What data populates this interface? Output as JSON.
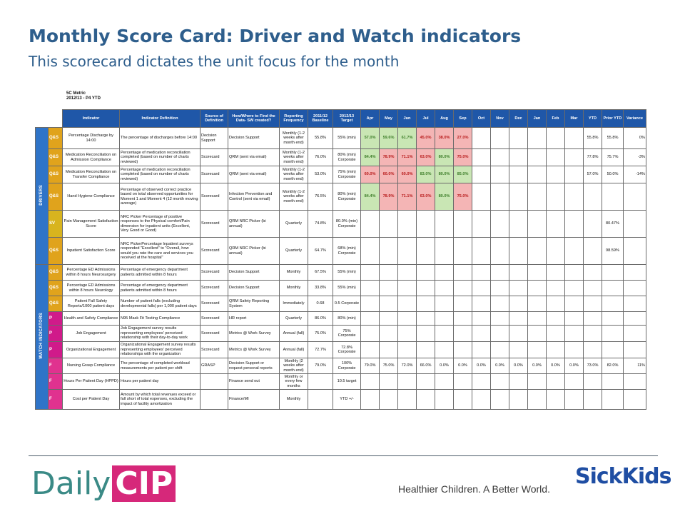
{
  "header": {
    "title": "Monthly Score Card: Driver and Watch indicators",
    "subtitle": "This scorecard dictates the unit focus for the month"
  },
  "scorecard": {
    "metric_label": "5C Metric",
    "period_label": "2012/13 - P4 YTD",
    "columns": {
      "indicator": "Indicator",
      "definition": "Indicator Definition",
      "source": "Source of Definition",
      "how_where": "How/Where to Find the Data- SW created?",
      "frequency": "Reporting Frequency",
      "baseline": "2011/12 Baseline",
      "target": "2012/13 Target",
      "months": [
        "Apr",
        "May",
        "Jun",
        "Jul",
        "Aug",
        "Sep",
        "Oct",
        "Nov",
        "Dec",
        "Jan",
        "Feb",
        "Mar"
      ],
      "ytd": "YTD",
      "prior_ytd": "Prior YTD",
      "variance": "Variance"
    },
    "groups": {
      "drivers": "DRIVERS",
      "watch": "WATCH INDICATORS"
    },
    "drivers": [
      {
        "cat": "Q&S",
        "indicator": "Percentage Discharge by 14:00",
        "definition": "The percentage of discharges before 14:00",
        "source": "Decision Support",
        "how": "Decision Support",
        "frequency": "Monthly (1-2 weeks after month end)",
        "baseline": "55.8%",
        "target": "55% (min)",
        "months": [
          "57.0%",
          "59.6%",
          "61.7%",
          "45.0%",
          "38.0%",
          "27.0%",
          "",
          "",
          "",
          "",
          "",
          ""
        ],
        "ytd": "55.8%",
        "prior_ytd": "55.8%",
        "variance": "0%"
      },
      {
        "cat": "Q&S",
        "indicator": "Medication Reconciliation on Admission Compliance",
        "definition": "Percentage of medication reconciliation completed (based on number of charts reviewed)",
        "source": "Scorecard",
        "how": "QRM (sent via email)",
        "frequency": "Monthly (1-2 weeks after month end)",
        "baseline": "76.0%",
        "target": "80% (min) Corporate",
        "months": [
          "84.4%",
          "78.9%",
          "71.1%",
          "63.0%",
          "80.0%",
          "75.0%",
          "",
          "",
          "",
          "",
          "",
          ""
        ],
        "ytd": "77.8%",
        "prior_ytd": "75.7%",
        "variance": "-3%"
      },
      {
        "cat": "Q&S",
        "indicator": "Medication Reconciliation on Transfer Compliance",
        "definition": "Percentage of medication reconciliation completed (based on number of charts reviewed)",
        "source": "Scorecard",
        "how": "QRM (sent via email)",
        "frequency": "Monthly (1-2 weeks after month end)",
        "baseline": "53.0%",
        "target": "75% (min) Corporate",
        "months": [
          "60.0%",
          "60.0%",
          "60.0%",
          "83.0%",
          "80.0%",
          "85.0%",
          "",
          "",
          "",
          "",
          "",
          ""
        ],
        "ytd": "57.0%",
        "prior_ytd": "50.0%",
        "variance": "-14%"
      },
      {
        "cat": "Q&S",
        "indicator": "Hand Hygiene Compliance",
        "definition": "Percentage of observed correct practice based on total observed opportunities for Moment 1 and Moment 4 (12 month moving average)",
        "source": "Scorecard",
        "how": "Infection Prevention and Control (sent via email)",
        "frequency": "Monthly (1-2 weeks after month end)",
        "baseline": "76.5%",
        "target": "80% (min) Corporate",
        "months": [
          "84.4%",
          "78.9%",
          "71.1%",
          "63.0%",
          "80.0%",
          "75.0%",
          "",
          "",
          "",
          "",
          "",
          ""
        ],
        "ytd": "",
        "prior_ytd": "",
        "variance": ""
      },
      {
        "cat": "SV",
        "indicator": "Pain Management Satisfaction Score",
        "definition": "NRC Picker Percentage of positive responses to the Physical comfort/Pain dimension for inpatient units (Excellent, Very Good or Good)",
        "source": "Scorecard",
        "how": "QRM NRC Picker (bi annual)",
        "frequency": "Quarterly",
        "baseline": "74.8%",
        "target": "80.0% (min) Corporate",
        "months": [
          "",
          "",
          "",
          "",
          "",
          "",
          "",
          "",
          "",
          "",
          "",
          ""
        ],
        "ytd": "",
        "prior_ytd": "80.47%",
        "variance": ""
      },
      {
        "cat": "Q&S",
        "indicator": "Inpatient Satisfaction Score",
        "definition": "NRC PickerPercentage Inpatient surveys responded \"Excellent\" to \"Overall, how would you rate the care and services you received at the hospital\"",
        "source": "Scorecard",
        "how": "QRM NRC Picker (bi annual)",
        "frequency": "Quarterly",
        "baseline": "64.7%",
        "target": "68% (min) Corporate",
        "months": [
          "",
          "",
          "",
          "",
          "",
          "",
          "",
          "",
          "",
          "",
          "",
          ""
        ],
        "ytd": "",
        "prior_ytd": "98.59%",
        "variance": ""
      }
    ],
    "watch": [
      {
        "cat": "Q&S",
        "indicator": "Percentage ED Admissions within 8 hours Neurosurgery",
        "definition": "Percentage of emergency department patients admitted within 8 hours",
        "source": "Scorecard",
        "how": "Decision Support",
        "frequency": "Monthly",
        "baseline": "67.5%",
        "target": "55% (min)",
        "months": [
          "",
          "",
          "",
          "",
          "",
          "",
          "",
          "",
          "",
          "",
          "",
          ""
        ],
        "ytd": "",
        "prior_ytd": "",
        "variance": ""
      },
      {
        "cat": "Q&S",
        "indicator": "Percentage ED Admissions within 8 hours Neurology",
        "definition": "Percentage of emergency department patients admitted within 8 hours",
        "source": "Scorecard",
        "how": "Decision Support",
        "frequency": "Monthly",
        "baseline": "33.8%",
        "target": "55% (min)",
        "months": [
          "",
          "",
          "",
          "",
          "",
          "",
          "",
          "",
          "",
          "",
          "",
          ""
        ],
        "ytd": "",
        "prior_ytd": "",
        "variance": ""
      },
      {
        "cat": "Q&S",
        "indicator": "Patient Fall Safety Reports/1000 patient days",
        "definition": "Number of patient falls (excluding developmental falls) per 1,000 patient days",
        "source": "Scorecard",
        "how": "QRM Safety Reporting System",
        "frequency": "Immediately",
        "baseline": "0.68",
        "target": "0.5 Corporate",
        "months": [
          "",
          "",
          "",
          "",
          "",
          "",
          "",
          "",
          "",
          "",
          "",
          ""
        ],
        "ytd": "",
        "prior_ytd": "",
        "variance": ""
      },
      {
        "cat": "P",
        "indicator": "Health and Safety Compliance",
        "definition": "N95 Mask Fit Testing Compliance",
        "source": "Scorecard",
        "how": "HR report",
        "frequency": "Quarterly",
        "baseline": "86.0%",
        "target": "80% (min)",
        "months": [
          "",
          "",
          "",
          "",
          "",
          "",
          "",
          "",
          "",
          "",
          "",
          ""
        ],
        "ytd": "",
        "prior_ytd": "",
        "variance": ""
      },
      {
        "cat": "P",
        "indicator": "Job Engagement",
        "definition": "Job Engagement survey results representing employees' perceived relationship with their day-to-day work",
        "source": "Scorecard",
        "how": "Metrics @ Work Survey",
        "frequency": "Annual (fall)",
        "baseline": "75.0%",
        "target": "75% Corporate",
        "months": [
          "",
          "",
          "",
          "",
          "",
          "",
          "",
          "",
          "",
          "",
          "",
          ""
        ],
        "ytd": "",
        "prior_ytd": "",
        "variance": ""
      },
      {
        "cat": "P",
        "indicator": "Organizational Engagement",
        "definition": "Organizational Engagement survey results representing employees' perceived relationships with the organization",
        "source": "Scorecard",
        "how": "Metrics @ Work Survey",
        "frequency": "Annual (fall)",
        "baseline": "72.7%",
        "target": "72.8% Corporate",
        "months": [
          "",
          "",
          "",
          "",
          "",
          "",
          "",
          "",
          "",
          "",
          "",
          ""
        ],
        "ytd": "",
        "prior_ytd": "",
        "variance": ""
      },
      {
        "cat": "F",
        "indicator": "Nursing Grasp Compliance",
        "definition": "The percentage of completed workload measurements per patient per shift",
        "source": "GRASP",
        "how": "Decision Support or request personal reports",
        "frequency": "Monthly (2 weeks after month end)",
        "baseline": "79.0%",
        "target": "100% Corporate",
        "months": [
          "79.0%",
          "75.0%",
          "72.0%",
          "66.0%",
          "0.0%",
          "0.0%",
          "0.0%",
          "0.0%",
          "0.0%",
          "0.0%",
          "0.0%",
          "0.0%"
        ],
        "ytd": "73.0%",
        "prior_ytd": "82.0%",
        "variance": "11%"
      },
      {
        "cat": "F",
        "indicator": "Hours Per Patient Day (HPPD)",
        "definition": "Hours per patient day",
        "source": "",
        "how": "Finance send out",
        "frequency": "Monthly or every few months",
        "baseline": "",
        "target": "10.5 target",
        "months": [
          "",
          "",
          "",
          "",
          "",
          "",
          "",
          "",
          "",
          "",
          "",
          ""
        ],
        "ytd": "",
        "prior_ytd": "",
        "variance": ""
      },
      {
        "cat": "F",
        "indicator": "Cost per Patient Day",
        "definition": "Amount by which total revenues exceed or fall short of total expenses, excluding the impact of facility amortization",
        "source": "",
        "how": "Finance/MI",
        "frequency": "Monthly",
        "baseline": "",
        "target": "YTD +/-",
        "months": [
          "",
          "",
          "",
          "",
          "",
          "",
          "",
          "",
          "",
          "",
          "",
          ""
        ],
        "ytd": "",
        "prior_ytd": "",
        "variance": ""
      }
    ],
    "status_colors": {
      "on_target": "#c9e6b4",
      "off_target": "#f4b5b5"
    },
    "driver_month_status": [
      [
        "g",
        "g",
        "g",
        "r",
        "r",
        "r"
      ],
      [
        "g",
        "r",
        "r",
        "r",
        "g",
        "r"
      ],
      [
        "r",
        "r",
        "r",
        "g",
        "g",
        "g"
      ],
      [
        "g",
        "r",
        "r",
        "r",
        "g",
        "r"
      ]
    ]
  },
  "footer": {
    "logo_left_a": "Daily",
    "logo_left_b": "CIP",
    "tagline": "Healthier Children. A Better World.",
    "logo_right": "SickKids"
  }
}
